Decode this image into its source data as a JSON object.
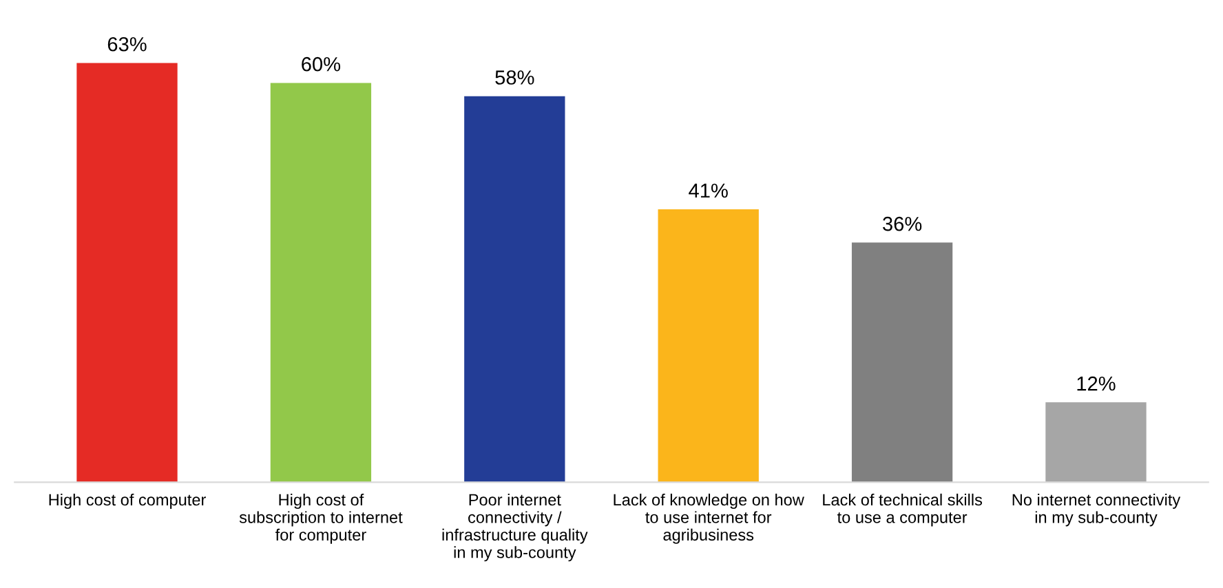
{
  "chart_data": {
    "type": "bar",
    "categories": [
      "High cost of computer",
      "High cost of subscription to internet for computer",
      "Poor internet connectivity / infrastructure quality in my sub-county",
      "Lack of knowledge on how to use internet for agribusiness",
      "Lack of technical skills to use a computer",
      "No internet connectivity in my sub-county"
    ],
    "values": [
      63,
      60,
      58,
      41,
      36,
      12
    ],
    "colors": [
      "#e52b25",
      "#92c84a",
      "#233d96",
      "#fbb51b",
      "#808080",
      "#a6a6a6"
    ],
    "value_labels": [
      "63%",
      "60%",
      "58%",
      "41%",
      "36%",
      "12%"
    ],
    "grid": false,
    "legend": false
  }
}
